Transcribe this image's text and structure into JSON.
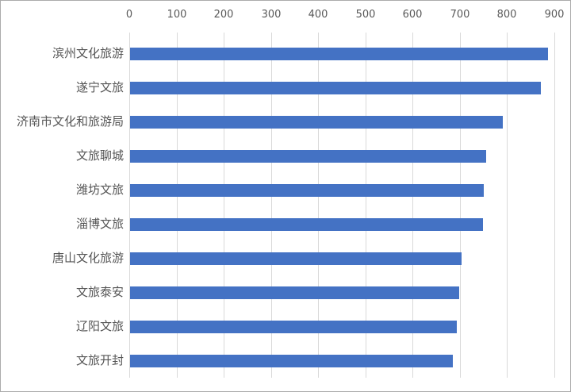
{
  "chart_data": {
    "type": "bar",
    "orientation": "horizontal",
    "title": "",
    "categories": [
      "滨州文化旅游",
      "遂宁文旅",
      "济南市文化和旅游局",
      "文旅聊城",
      "潍坊文旅",
      "淄博文旅",
      "唐山文化旅游",
      "文旅泰安",
      "辽阳文旅",
      "文旅开封"
    ],
    "values": [
      885,
      871,
      790,
      754,
      750,
      748,
      703,
      697,
      693,
      684
    ],
    "xlabel": "",
    "ylabel": "",
    "xlim": [
      0,
      900
    ],
    "xticks": [
      "0",
      "100",
      "200",
      "300",
      "400",
      "500",
      "600",
      "700",
      "800",
      "900"
    ],
    "axis_position": "top",
    "grid": true,
    "legend_position": "none",
    "colors": {
      "bar": "#4472C4",
      "gridline": "#D9D9D9",
      "axis_text": "#595959",
      "category_text": "#555555",
      "background": "#FFFFFF",
      "frame_border": "#ABABAB"
    }
  }
}
